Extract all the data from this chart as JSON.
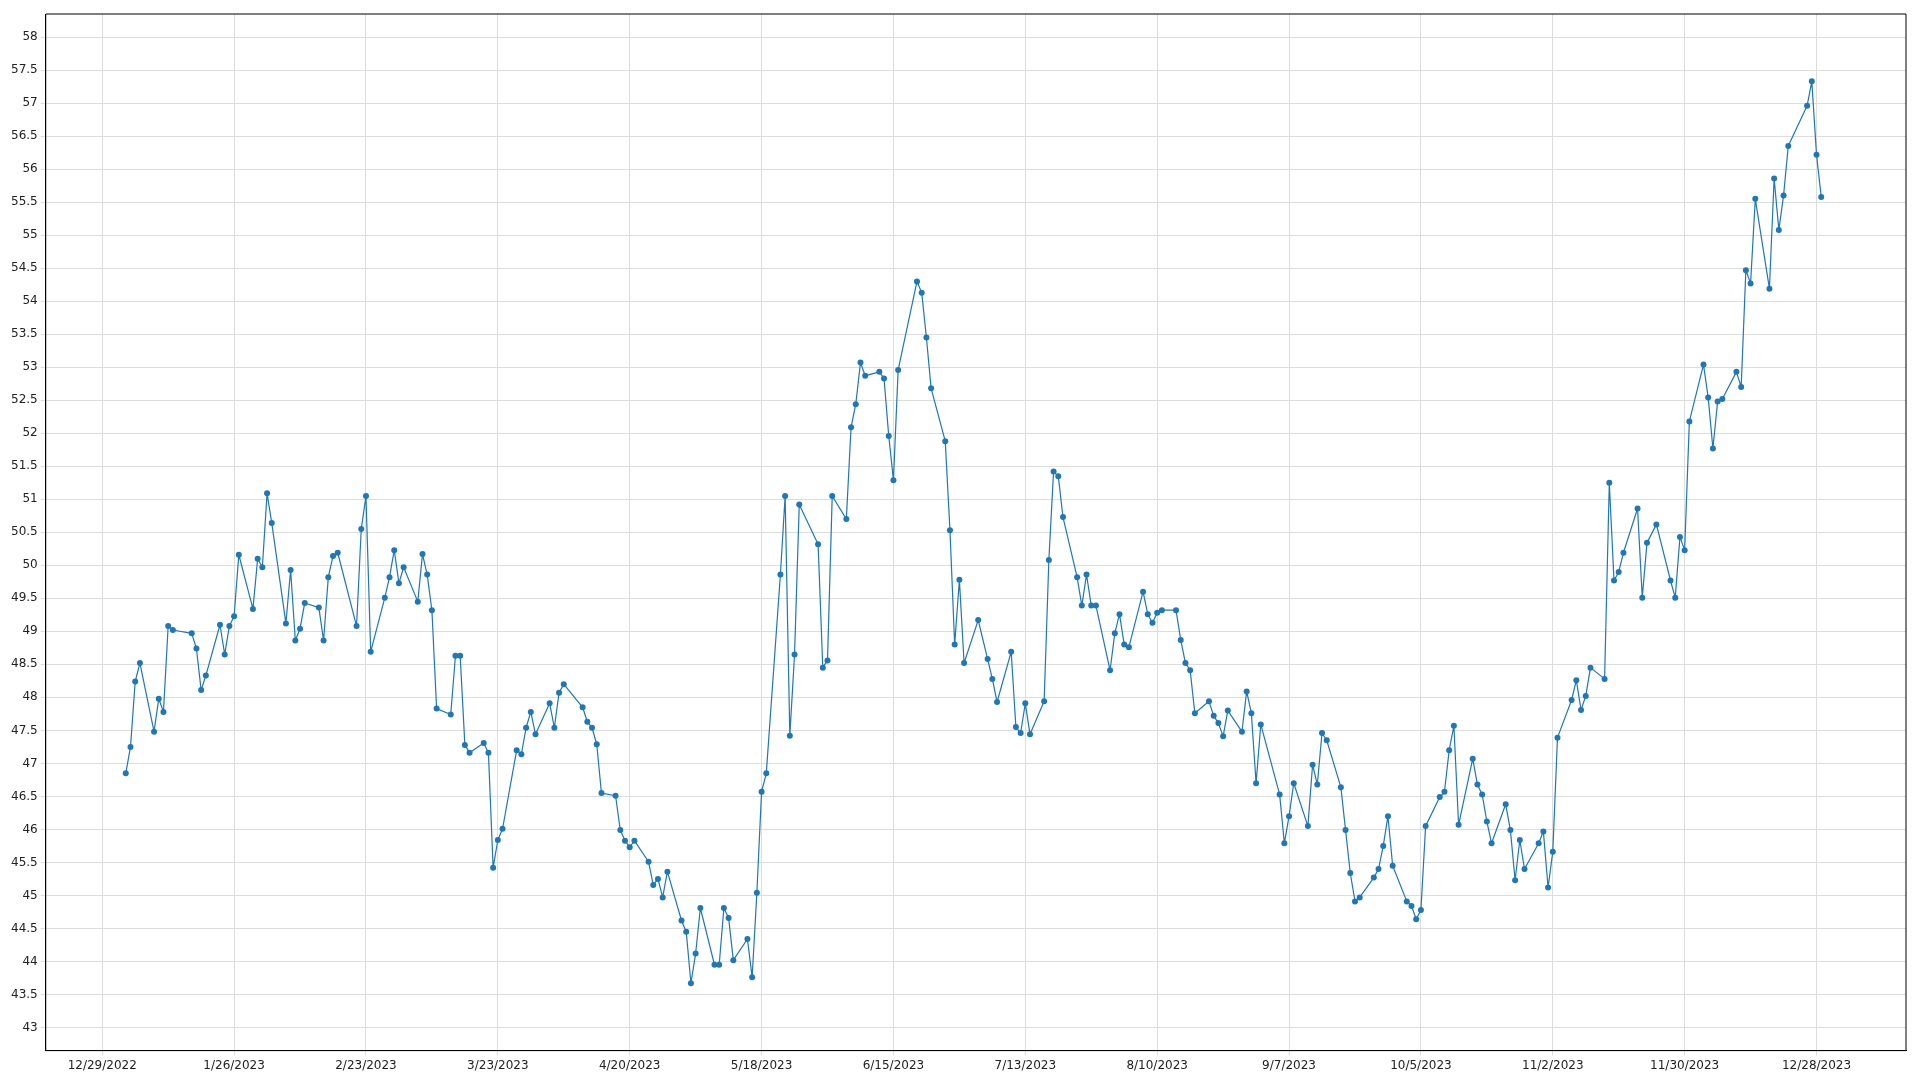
{
  "chart_data": {
    "type": "line",
    "marker": "circle",
    "line_style": "solid",
    "grid": true,
    "xlim": [
      "2022-12-17",
      "2024-01-16"
    ],
    "xticks": [
      {
        "value": "2022-12-29",
        "label": "12/29/2022"
      },
      {
        "value": "2023-01-26",
        "label": "1/26/2023"
      },
      {
        "value": "2023-02-23",
        "label": "2/23/2023"
      },
      {
        "value": "2023-03-23",
        "label": "3/23/2023"
      },
      {
        "value": "2023-04-20",
        "label": "4/20/2023"
      },
      {
        "value": "2023-05-18",
        "label": "5/18/2023"
      },
      {
        "value": "2023-06-15",
        "label": "6/15/2023"
      },
      {
        "value": "2023-07-13",
        "label": "7/13/2023"
      },
      {
        "value": "2023-08-10",
        "label": "8/10/2023"
      },
      {
        "value": "2023-09-07",
        "label": "9/7/2023"
      },
      {
        "value": "2023-10-05",
        "label": "10/5/2023"
      },
      {
        "value": "2023-11-02",
        "label": "11/2/2023"
      },
      {
        "value": "2023-11-30",
        "label": "11/30/2023"
      },
      {
        "value": "2023-12-28",
        "label": "12/28/2023"
      }
    ],
    "ylim": [
      42.65,
      58.35
    ],
    "yticks": [
      43,
      43.5,
      44,
      44.5,
      45,
      45.5,
      46,
      46.5,
      47,
      47.5,
      48,
      48.5,
      49,
      49.5,
      50,
      50.5,
      51,
      51.5,
      52,
      52.5,
      53,
      53.5,
      54,
      54.5,
      55,
      55.5,
      56,
      56.5,
      57,
      57.5,
      58
    ],
    "x": [
      "2023-01-03",
      "2023-01-04",
      "2023-01-05",
      "2023-01-06",
      "2023-01-09",
      "2023-01-10",
      "2023-01-11",
      "2023-01-12",
      "2023-01-13",
      "2023-01-17",
      "2023-01-18",
      "2023-01-19",
      "2023-01-20",
      "2023-01-23",
      "2023-01-24",
      "2023-01-25",
      "2023-01-26",
      "2023-01-27",
      "2023-01-30",
      "2023-01-31",
      "2023-02-01",
      "2023-02-02",
      "2023-02-03",
      "2023-02-06",
      "2023-02-07",
      "2023-02-08",
      "2023-02-09",
      "2023-02-10",
      "2023-02-13",
      "2023-02-14",
      "2023-02-15",
      "2023-02-16",
      "2023-02-17",
      "2023-02-21",
      "2023-02-22",
      "2023-02-23",
      "2023-02-24",
      "2023-02-27",
      "2023-02-28",
      "2023-03-01",
      "2023-03-02",
      "2023-03-03",
      "2023-03-06",
      "2023-03-07",
      "2023-03-08",
      "2023-03-09",
      "2023-03-10",
      "2023-03-13",
      "2023-03-14",
      "2023-03-15",
      "2023-03-16",
      "2023-03-17",
      "2023-03-20",
      "2023-03-21",
      "2023-03-22",
      "2023-03-23",
      "2023-03-24",
      "2023-03-27",
      "2023-03-28",
      "2023-03-29",
      "2023-03-30",
      "2023-03-31",
      "2023-04-03",
      "2023-04-04",
      "2023-04-05",
      "2023-04-06",
      "2023-04-10",
      "2023-04-11",
      "2023-04-12",
      "2023-04-13",
      "2023-04-14",
      "2023-04-17",
      "2023-04-18",
      "2023-04-19",
      "2023-04-20",
      "2023-04-21",
      "2023-04-24",
      "2023-04-25",
      "2023-04-26",
      "2023-04-27",
      "2023-04-28",
      "2023-05-01",
      "2023-05-02",
      "2023-05-03",
      "2023-05-04",
      "2023-05-05",
      "2023-05-08",
      "2023-05-09",
      "2023-05-10",
      "2023-05-11",
      "2023-05-12",
      "2023-05-15",
      "2023-05-16",
      "2023-05-17",
      "2023-05-18",
      "2023-05-19",
      "2023-05-22",
      "2023-05-23",
      "2023-05-24",
      "2023-05-25",
      "2023-05-26",
      "2023-05-30",
      "2023-05-31",
      "2023-06-01",
      "2023-06-02",
      "2023-06-05",
      "2023-06-06",
      "2023-06-07",
      "2023-06-08",
      "2023-06-09",
      "2023-06-12",
      "2023-06-13",
      "2023-06-14",
      "2023-06-15",
      "2023-06-16",
      "2023-06-20",
      "2023-06-21",
      "2023-06-22",
      "2023-06-23",
      "2023-06-26",
      "2023-06-27",
      "2023-06-28",
      "2023-06-29",
      "2023-06-30",
      "2023-07-03",
      "2023-07-05",
      "2023-07-06",
      "2023-07-07",
      "2023-07-10",
      "2023-07-11",
      "2023-07-12",
      "2023-07-13",
      "2023-07-14",
      "2023-07-17",
      "2023-07-18",
      "2023-07-19",
      "2023-07-20",
      "2023-07-21",
      "2023-07-24",
      "2023-07-25",
      "2023-07-26",
      "2023-07-27",
      "2023-07-28",
      "2023-07-31",
      "2023-08-01",
      "2023-08-02",
      "2023-08-03",
      "2023-08-04",
      "2023-08-07",
      "2023-08-08",
      "2023-08-09",
      "2023-08-10",
      "2023-08-11",
      "2023-08-14",
      "2023-08-15",
      "2023-08-16",
      "2023-08-17",
      "2023-08-18",
      "2023-08-21",
      "2023-08-22",
      "2023-08-23",
      "2023-08-24",
      "2023-08-25",
      "2023-08-28",
      "2023-08-29",
      "2023-08-30",
      "2023-08-31",
      "2023-09-01",
      "2023-09-05",
      "2023-09-06",
      "2023-09-07",
      "2023-09-08",
      "2023-09-11",
      "2023-09-12",
      "2023-09-13",
      "2023-09-14",
      "2023-09-15",
      "2023-09-18",
      "2023-09-19",
      "2023-09-20",
      "2023-09-21",
      "2023-09-22",
      "2023-09-25",
      "2023-09-26",
      "2023-09-27",
      "2023-09-28",
      "2023-09-29",
      "2023-10-02",
      "2023-10-03",
      "2023-10-04",
      "2023-10-05",
      "2023-10-06",
      "2023-10-09",
      "2023-10-10",
      "2023-10-11",
      "2023-10-12",
      "2023-10-13",
      "2023-10-16",
      "2023-10-17",
      "2023-10-18",
      "2023-10-19",
      "2023-10-20",
      "2023-10-23",
      "2023-10-24",
      "2023-10-25",
      "2023-10-26",
      "2023-10-27",
      "2023-10-30",
      "2023-10-31",
      "2023-11-01",
      "2023-11-02",
      "2023-11-03",
      "2023-11-06",
      "2023-11-07",
      "2023-11-08",
      "2023-11-09",
      "2023-11-10",
      "2023-11-13",
      "2023-11-14",
      "2023-11-15",
      "2023-11-16",
      "2023-11-17",
      "2023-11-20",
      "2023-11-21",
      "2023-11-22",
      "2023-11-24",
      "2023-11-27",
      "2023-11-28",
      "2023-11-29",
      "2023-11-30",
      "2023-12-01",
      "2023-12-04",
      "2023-12-05",
      "2023-12-06",
      "2023-12-07",
      "2023-12-08",
      "2023-12-11",
      "2023-12-12",
      "2023-12-13",
      "2023-12-14",
      "2023-12-15",
      "2023-12-18",
      "2023-12-19",
      "2023-12-20",
      "2023-12-21",
      "2023-12-22",
      "2023-12-26",
      "2023-12-27",
      "2023-12-28",
      "2023-12-29"
    ],
    "series": [
      {
        "color": "#1f77b4",
        "values": [
          46.85,
          47.25,
          48.24,
          48.52,
          47.48,
          47.98,
          47.78,
          49.08,
          49.02,
          48.97,
          48.74,
          48.11,
          48.33,
          49.1,
          48.65,
          49.08,
          49.23,
          50.16,
          49.34,
          50.1,
          49.97,
          51.09,
          50.64,
          49.12,
          49.93,
          48.86,
          49.04,
          49.43,
          49.36,
          48.86,
          49.82,
          50.14,
          50.19,
          49.08,
          50.55,
          51.05,
          48.69,
          49.51,
          49.82,
          50.23,
          49.73,
          49.97,
          49.45,
          50.17,
          49.86,
          49.32,
          47.83,
          47.74,
          48.63,
          48.63,
          47.28,
          47.16,
          47.31,
          47.16,
          45.42,
          45.84,
          46.01,
          47.2,
          47.14,
          47.54,
          47.78,
          47.44,
          47.91,
          47.54,
          48.07,
          48.2,
          47.85,
          47.63,
          47.54,
          47.29,
          46.55,
          46.51,
          45.99,
          45.83,
          45.73,
          45.83,
          45.51,
          45.16,
          45.25,
          44.97,
          45.36,
          44.62,
          44.45,
          43.67,
          44.12,
          44.81,
          43.95,
          43.95,
          44.81,
          44.66,
          44.02,
          44.34,
          43.76,
          45.04,
          46.57,
          46.85,
          49.86,
          51.05,
          47.42,
          48.65,
          50.92,
          50.32,
          48.45,
          48.56,
          51.05,
          50.7,
          52.09,
          52.44,
          53.07,
          52.87,
          52.93,
          52.83,
          51.96,
          51.29,
          52.96,
          54.3,
          54.13,
          53.45,
          52.68,
          51.88,
          50.53,
          48.8,
          49.78,
          48.52,
          49.17,
          48.58,
          48.28,
          47.93,
          48.69,
          47.55,
          47.46,
          47.91,
          47.44,
          47.94,
          50.08,
          51.42,
          51.35,
          50.73,
          49.82,
          49.39,
          49.86,
          49.39,
          49.39,
          48.41,
          48.97,
          49.26,
          48.8,
          48.76,
          49.6,
          49.26,
          49.13,
          49.28,
          49.32,
          49.32,
          48.87,
          48.52,
          48.41,
          47.76,
          47.94,
          47.72,
          47.61,
          47.41,
          47.8,
          47.48,
          48.09,
          47.76,
          46.7,
          47.59,
          46.53,
          45.79,
          46.2,
          46.7,
          46.05,
          46.98,
          46.68,
          47.46,
          47.35,
          46.64,
          45.99,
          45.34,
          44.91,
          44.97,
          45.27,
          45.4,
          45.75,
          46.2,
          45.45,
          44.91,
          44.84,
          44.64,
          44.78,
          46.05,
          46.49,
          46.57,
          47.2,
          47.57,
          46.07,
          47.07,
          46.68,
          46.53,
          46.12,
          45.79,
          46.38,
          45.99,
          45.23,
          45.84,
          45.4,
          45.79,
          45.97,
          45.12,
          45.66,
          47.39,
          47.96,
          48.26,
          47.81,
          48.02,
          48.45,
          48.28,
          51.25,
          49.77,
          49.9,
          50.19,
          50.86,
          49.51,
          50.34,
          50.62,
          49.77,
          49.51,
          50.43,
          50.23,
          52.18,
          53.04,
          52.54,
          51.77,
          52.48,
          52.52,
          52.93,
          52.7,
          54.47,
          54.27,
          55.55,
          54.19,
          55.86,
          55.08,
          55.6,
          56.35,
          56.96,
          57.33,
          56.22,
          55.58
        ]
      }
    ]
  }
}
